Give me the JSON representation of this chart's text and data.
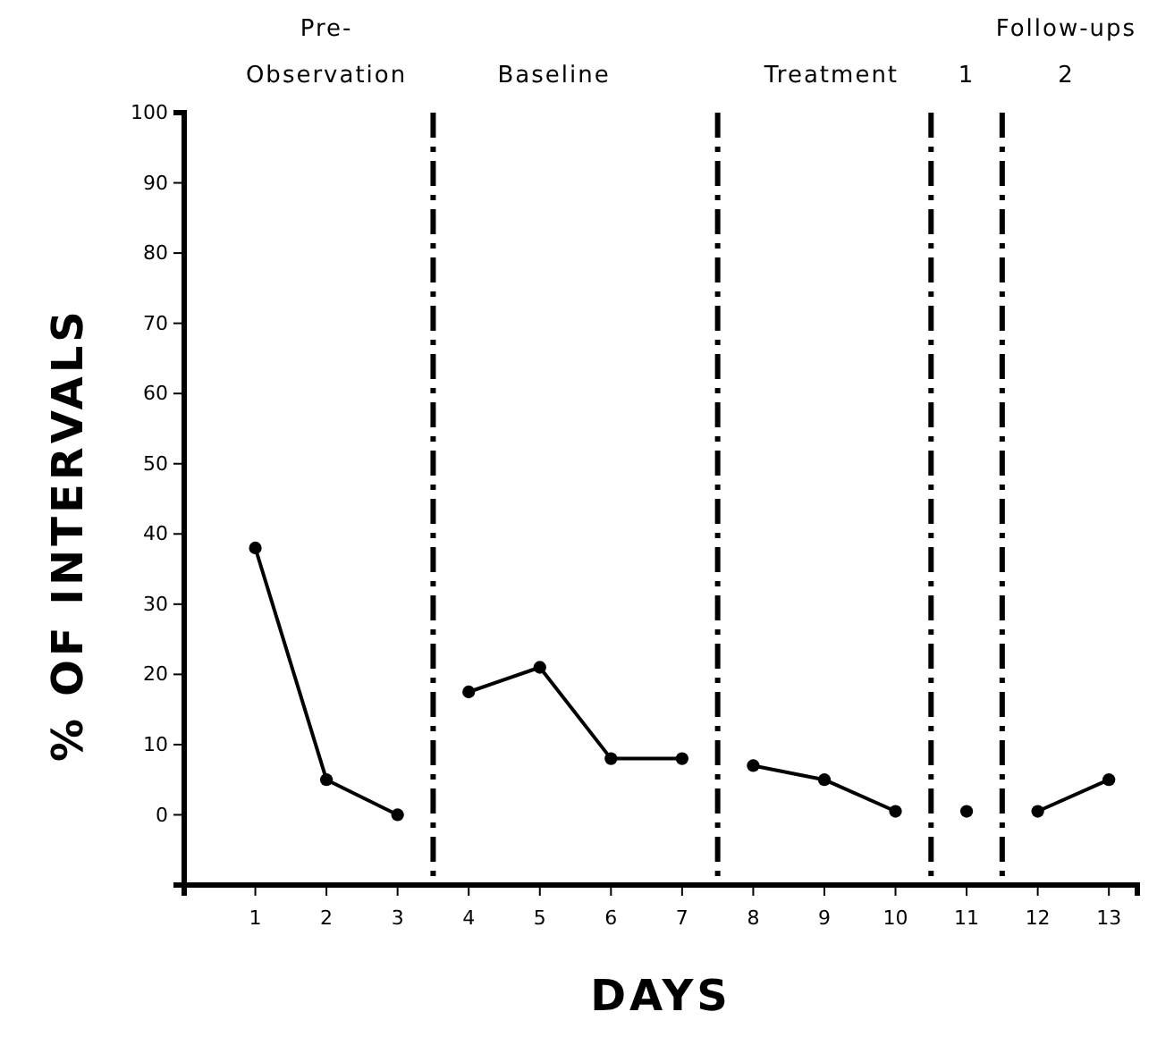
{
  "chart_data": {
    "type": "line",
    "xlabel": "DAYS",
    "ylabel": "% OF INTERVALS",
    "xlim": [
      0,
      13.4
    ],
    "ylim": [
      -10,
      100
    ],
    "xticks": [
      1,
      2,
      3,
      4,
      5,
      6,
      7,
      8,
      9,
      10,
      11,
      12,
      13
    ],
    "yticks": [
      0,
      10,
      20,
      30,
      40,
      50,
      60,
      70,
      80,
      90,
      100
    ],
    "series": [
      {
        "color": "#000000",
        "x": [
          1,
          2,
          3
        ],
        "values": [
          38,
          5,
          0
        ]
      },
      {
        "color": "#000000",
        "x": [
          4,
          5,
          6,
          7
        ],
        "values": [
          17.5,
          21,
          8,
          8
        ]
      },
      {
        "color": "#000000",
        "x": [
          8,
          9,
          10
        ],
        "values": [
          7,
          5,
          0.5
        ]
      },
      {
        "color": "#000000",
        "x": [
          11
        ],
        "values": [
          0.5
        ]
      },
      {
        "color": "#000000",
        "x": [
          12,
          13
        ],
        "values": [
          0.5,
          5
        ]
      }
    ],
    "marker": "circle",
    "line_style": "solid",
    "grid": false,
    "ref_lines": [
      {
        "axis": "x",
        "value": 3.5,
        "color": "#000000",
        "line_style": "dashed"
      },
      {
        "axis": "x",
        "value": 7.5,
        "color": "#000000",
        "line_style": "dashed"
      },
      {
        "axis": "x",
        "value": 10.5,
        "color": "#000000",
        "line_style": "dashed"
      },
      {
        "axis": "x",
        "value": 11.5,
        "color": "#000000",
        "line_style": "dashed"
      }
    ],
    "annotations": [
      "Pre-",
      "Observation",
      "Baseline",
      "Treatment",
      "Follow-ups",
      "1",
      "2"
    ]
  }
}
